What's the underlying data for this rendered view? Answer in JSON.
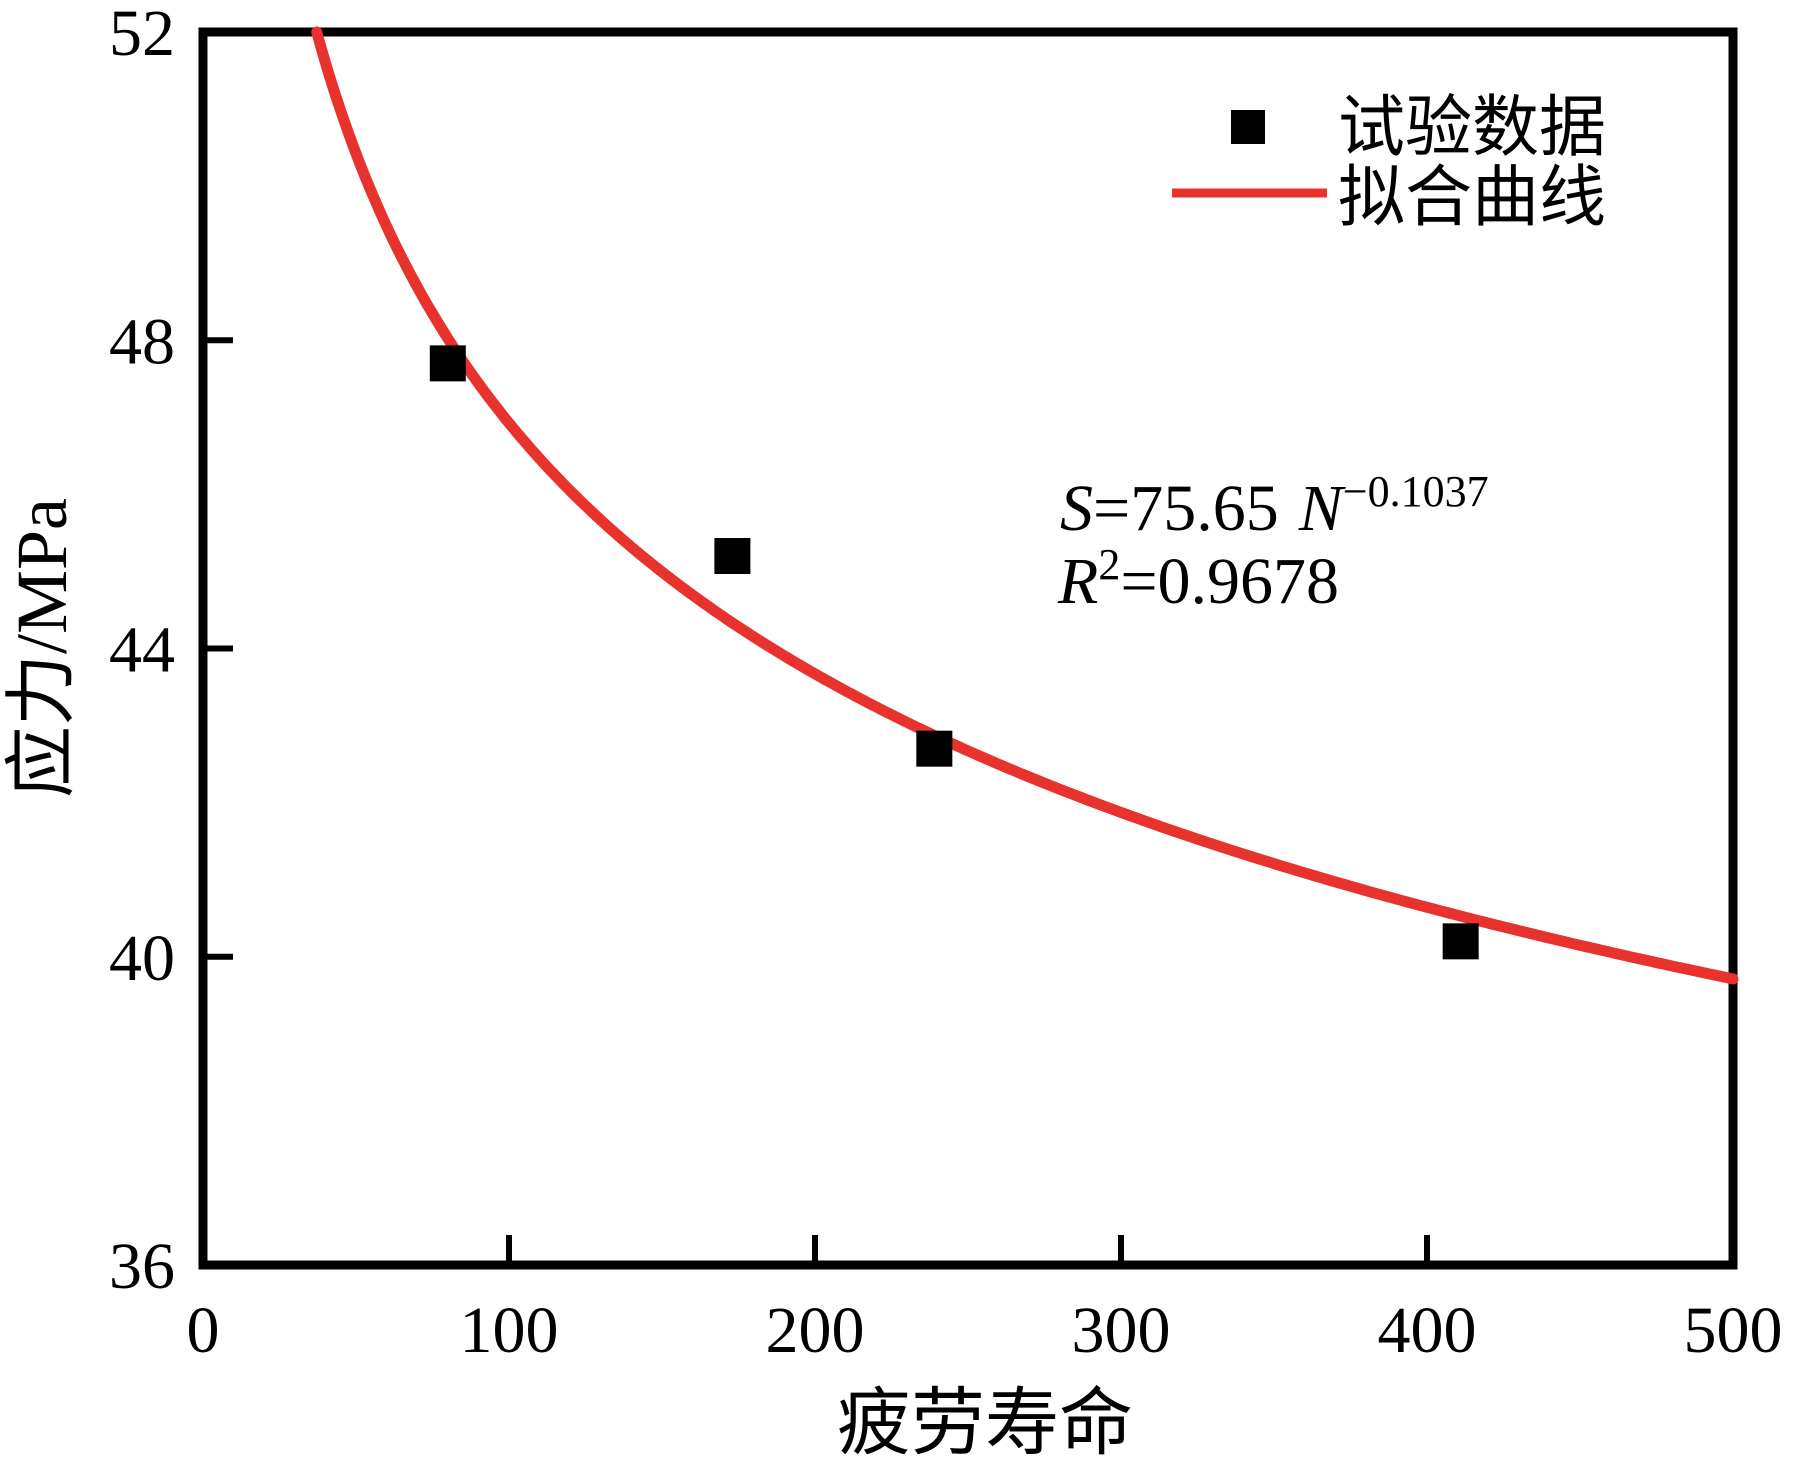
{
  "chart_data": {
    "type": "scatter",
    "title": "",
    "xlabel": "疲劳寿命",
    "ylabel": "应力/MPa",
    "xlim": [
      0,
      500
    ],
    "ylim": [
      36,
      52
    ],
    "x_ticks": [
      0,
      100,
      200,
      300,
      400,
      500
    ],
    "y_ticks": [
      36,
      40,
      44,
      48,
      52
    ],
    "grid": false,
    "legend_position": "top-right",
    "series": [
      {
        "name": "试验数据",
        "type": "scatter",
        "marker": "square",
        "color": "#000000",
        "points": [
          [
            80,
            47.7
          ],
          [
            173,
            45.2
          ],
          [
            239,
            42.7
          ],
          [
            411,
            40.2
          ]
        ]
      },
      {
        "name": "拟合曲线",
        "type": "line",
        "color": "#e8322e",
        "fit": {
          "model": "power",
          "equation": "S=75.65·N^(−0.1037)",
          "coefficient": 75.65,
          "exponent": -0.1037,
          "r_squared": 0.9678,
          "x_range": [
            37.2,
            500
          ]
        }
      }
    ]
  },
  "legend": {
    "items": [
      {
        "label": "试验数据",
        "marker": "black-square"
      },
      {
        "label": "拟合曲线",
        "marker": "red-line"
      }
    ]
  },
  "annotation": {
    "line1": {
      "lhs": "S",
      "mid": "=75.65",
      "var": "N",
      "exponent": "−0.1037"
    },
    "line2": {
      "lhs": "R",
      "sup": "2",
      "rest": "=0.9678"
    }
  },
  "colors": {
    "curve": "#e8322e",
    "marker": "#000000",
    "axis": "#000000",
    "background": "#ffffff"
  }
}
